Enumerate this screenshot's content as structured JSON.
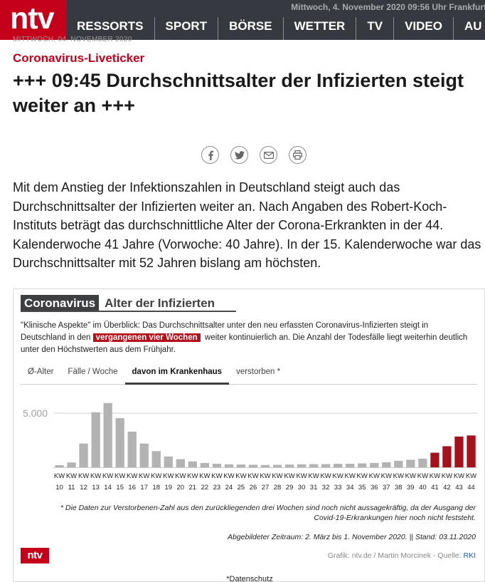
{
  "header": {
    "logo": "ntv",
    "date_line": "Mittwoch, 4. November 2020 09:56 Uhr Frankfurt",
    "nav": [
      "RESSORTS",
      "SPORT",
      "BÖRSE",
      "WETTER",
      "TV",
      "VIDEO",
      "AU"
    ]
  },
  "article": {
    "ghost_date": "MITTWOCH, 04. NOVEMBER 2020",
    "kicker": "Coronavirus-Liveticker",
    "headline": "+++ 09:45 Durchschnittsalter der Infizierten steigt weiter an +++",
    "share": [
      "facebook-icon",
      "twitter-icon",
      "mail-icon",
      "print-icon"
    ],
    "lead": "Mit dem Anstieg der Infektionszahlen in Deutschland steigt auch das Durchschnittsalter der Infizierten weiter an. Nach Angaben des Robert-Koch-Instituts beträgt das durchschnittliche Alter der Corona-Erkrankten in der 44. Kalenderwoche 41 Jahre (Vorwoche: 40 Jahre). In der 15. Kalenderwoche war das Durchschnittsalter mit 52 Jahren bislang am höchsten."
  },
  "graphic": {
    "title_dark": "Coronavirus",
    "title_light": "Alter der Infizierten",
    "desc_part1": "\"Klinische Aspekte\" im Überblick: Das Durchschnittsalter unter den neu erfassten Coronavirus-Infizierten steigt in Deutschland in den",
    "desc_highlight": "vergangenen vier Wochen",
    "desc_part2": "weiter kontinuierlich an. Die Anzahl der Todesfälle liegt weiterhin deutlich unter den Höchstwerten aus dem Frühjahr.",
    "tabs": [
      "Ø-Alter",
      "Fälle / Woche",
      "davon im Krankenhaus",
      "verstorben *"
    ],
    "active_tab": 2,
    "footnote": "* Die Daten zur Verstorbenen-Zahl aus den zurückliegenden drei Wochen sind noch nicht aussagekräftig, da der Ausgang der Covid-19-Erkrankungen hier noch nicht feststeht.",
    "period": "Abgebildeter Zeitraum: 2. März bis 1. November 2020. || Stand: 03.11.2020",
    "logo": "ntv",
    "credit_prefix": "Grafik: ntv.de / Martin Morcinek - Quelle:",
    "credit_link": "RKI",
    "privacy": "*Datenschutz"
  },
  "chart_data": {
    "type": "bar",
    "title": "davon im Krankenhaus",
    "xlabel": "",
    "ylabel": "",
    "ylim": [
      0,
      6000
    ],
    "yticks": [
      5000
    ],
    "ytick_labels": [
      "5.000"
    ],
    "grid": true,
    "colors": {
      "normal": "#b3b3b3",
      "highlight": "#a6121b"
    },
    "highlight_from_index": 31,
    "categories": [
      "KW 10",
      "KW 11",
      "KW 12",
      "KW 13",
      "KW 14",
      "KW 15",
      "KW 16",
      "KW 17",
      "KW 18",
      "KW 19",
      "KW 20",
      "KW 21",
      "KW 22",
      "KW 23",
      "KW 24",
      "KW 25",
      "KW 26",
      "KW 27",
      "KW 28",
      "KW 29",
      "KW 30",
      "KW 31",
      "KW 32",
      "KW 33",
      "KW 34",
      "KW 35",
      "KW 36",
      "KW 37",
      "KW 38",
      "KW 39",
      "KW 40",
      "KW 41",
      "KW 42",
      "KW 43",
      "KW 44"
    ],
    "category_top": [
      "KW",
      "KW",
      "KW",
      "KW",
      "KW",
      "KW",
      "KW",
      "KW",
      "KW",
      "KW",
      "KW",
      "KW",
      "KW",
      "KW",
      "KW",
      "KW",
      "KW",
      "KW",
      "KW",
      "KW",
      "KW",
      "KW",
      "KW",
      "KW",
      "KW",
      "KW",
      "KW",
      "KW",
      "KW",
      "KW",
      "KW",
      "KW",
      "KW",
      "KW",
      "KW"
    ],
    "category_bottom": [
      "10",
      "11",
      "12",
      "13",
      "14",
      "15",
      "16",
      "17",
      "18",
      "19",
      "20",
      "21",
      "22",
      "23",
      "24",
      "25",
      "26",
      "27",
      "28",
      "29",
      "30",
      "31",
      "32",
      "33",
      "34",
      "35",
      "36",
      "37",
      "38",
      "39",
      "40",
      "41",
      "42",
      "43",
      "44"
    ],
    "values": [
      200,
      450,
      2200,
      5100,
      5950,
      4550,
      3300,
      2200,
      1500,
      1000,
      750,
      550,
      400,
      330,
      280,
      260,
      240,
      220,
      230,
      260,
      280,
      300,
      300,
      320,
      330,
      360,
      400,
      470,
      600,
      700,
      800,
      1350,
      1950,
      2850,
      2950
    ]
  }
}
